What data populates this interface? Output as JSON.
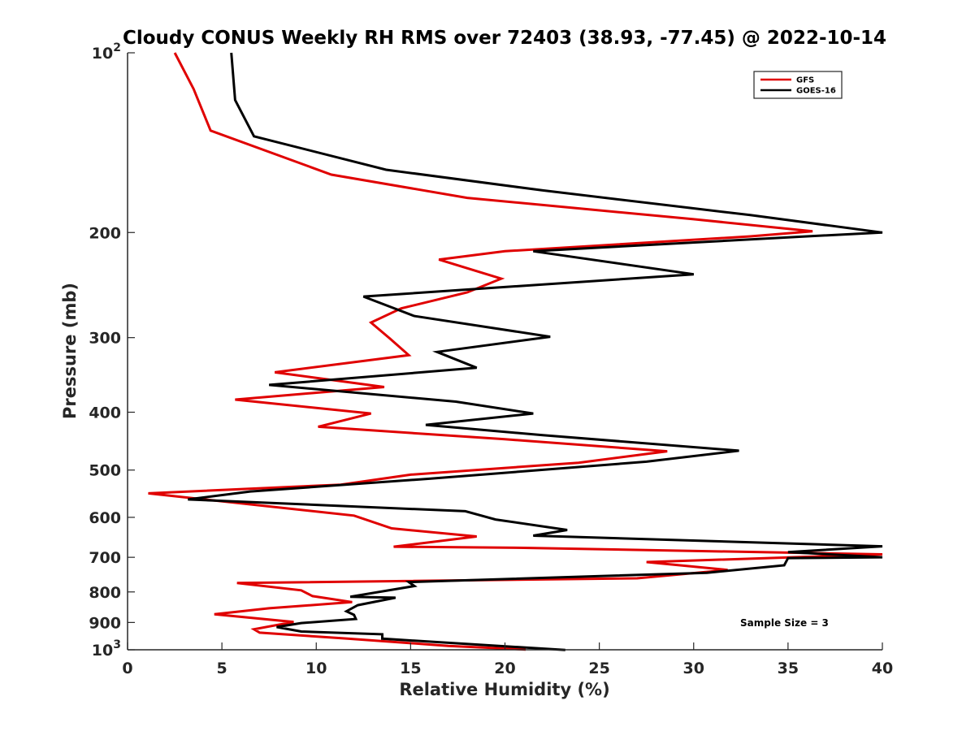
{
  "chart_data": {
    "type": "line",
    "title": "Cloudy CONUS Weekly RH RMS over 72403 (38.93, -77.45) @ 2022-10-14",
    "xlabel": "Relative Humidity (%)",
    "ylabel": "Pressure (mb)",
    "xlim": [
      0,
      40
    ],
    "ylim": [
      100,
      1000
    ],
    "yscale": "log",
    "y_reversed": true,
    "xticks": [
      "0",
      "5",
      "10",
      "15",
      "20",
      "25",
      "30",
      "35",
      "40"
    ],
    "yticks": [
      {
        "value": 100,
        "label": "10",
        "sup": "2"
      },
      {
        "value": 200,
        "label": "200",
        "sup": ""
      },
      {
        "value": 300,
        "label": "300",
        "sup": ""
      },
      {
        "value": 400,
        "label": "400",
        "sup": ""
      },
      {
        "value": 500,
        "label": "500",
        "sup": ""
      },
      {
        "value": 600,
        "label": "600",
        "sup": ""
      },
      {
        "value": 700,
        "label": "700",
        "sup": ""
      },
      {
        "value": 800,
        "label": "800",
        "sup": ""
      },
      {
        "value": 900,
        "label": "900",
        "sup": ""
      },
      {
        "value": 1000,
        "label": "10",
        "sup": "3"
      }
    ],
    "grid": false,
    "legend_position": "top-right",
    "annotation": "Sample Size = 3",
    "series": [
      {
        "name": "GFS",
        "color": "#e00000",
        "points": [
          [
            2.5,
            100
          ],
          [
            3.5,
            115
          ],
          [
            4.4,
            135
          ],
          [
            10.8,
            160
          ],
          [
            18,
            175
          ],
          [
            30,
            190
          ],
          [
            36.3,
            199
          ],
          [
            33,
            203
          ],
          [
            20,
            215
          ],
          [
            16.5,
            222
          ],
          [
            19.8,
            239
          ],
          [
            18,
            252
          ],
          [
            14.5,
            268
          ],
          [
            12.9,
            283
          ],
          [
            13.9,
            301
          ],
          [
            14.9,
            321
          ],
          [
            7.8,
            343
          ],
          [
            13.6,
            363
          ],
          [
            5.7,
            381
          ],
          [
            12.9,
            402
          ],
          [
            10.1,
            423
          ],
          [
            20,
            444
          ],
          [
            28.6,
            465
          ],
          [
            23.9,
            486
          ],
          [
            15,
            509
          ],
          [
            11.3,
            529
          ],
          [
            1.1,
            547
          ],
          [
            12,
            596
          ],
          [
            14,
            626
          ],
          [
            18.5,
            646
          ],
          [
            14.1,
            672
          ],
          [
            21,
            675
          ],
          [
            40,
            692
          ],
          [
            27.5,
            713
          ],
          [
            31.8,
            735
          ],
          [
            27,
            759
          ],
          [
            5.8,
            773
          ],
          [
            9.2,
            795
          ],
          [
            9.8,
            813
          ],
          [
            11.9,
            832
          ],
          [
            7.5,
            852
          ],
          [
            4.6,
            872
          ],
          [
            8.8,
            898
          ],
          [
            6.7,
            924
          ],
          [
            7,
            936
          ],
          [
            11.5,
            957
          ],
          [
            17,
            985
          ],
          [
            21.1,
            999
          ]
        ]
      },
      {
        "name": "GOES-16",
        "color": "#000000",
        "points": [
          [
            5.5,
            100
          ],
          [
            5.7,
            120
          ],
          [
            6.7,
            138
          ],
          [
            13.7,
            157
          ],
          [
            22,
            170
          ],
          [
            33,
            187
          ],
          [
            40,
            200
          ],
          [
            36,
            203
          ],
          [
            21.5,
            215
          ],
          [
            30,
            235
          ],
          [
            12.5,
            256
          ],
          [
            15.2,
            276
          ],
          [
            22.4,
            299
          ],
          [
            16.4,
            317
          ],
          [
            18.5,
            337
          ],
          [
            7.5,
            360
          ],
          [
            17.4,
            384
          ],
          [
            21.5,
            402
          ],
          [
            15.8,
            420
          ],
          [
            22,
            437
          ],
          [
            32.4,
            464
          ],
          [
            27.5,
            484
          ],
          [
            16,
            517
          ],
          [
            6.5,
            543
          ],
          [
            3.2,
            560
          ],
          [
            17.9,
            586
          ],
          [
            19.5,
            605
          ],
          [
            23.3,
            630
          ],
          [
            21.5,
            644
          ],
          [
            40,
            671
          ],
          [
            35,
            686
          ],
          [
            40,
            700
          ],
          [
            35,
            702
          ],
          [
            34.8,
            722
          ],
          [
            30.7,
            743
          ],
          [
            14.9,
            770
          ],
          [
            15.2,
            782
          ],
          [
            11.8,
            815
          ],
          [
            14.2,
            818
          ],
          [
            12.2,
            842
          ],
          [
            11.6,
            862
          ],
          [
            12,
            874
          ],
          [
            12.1,
            888
          ],
          [
            9.2,
            902
          ],
          [
            7.9,
            916
          ],
          [
            9.2,
            932
          ],
          [
            13.5,
            942
          ],
          [
            13.5,
            958
          ],
          [
            23.2,
            1001
          ]
        ]
      }
    ]
  }
}
